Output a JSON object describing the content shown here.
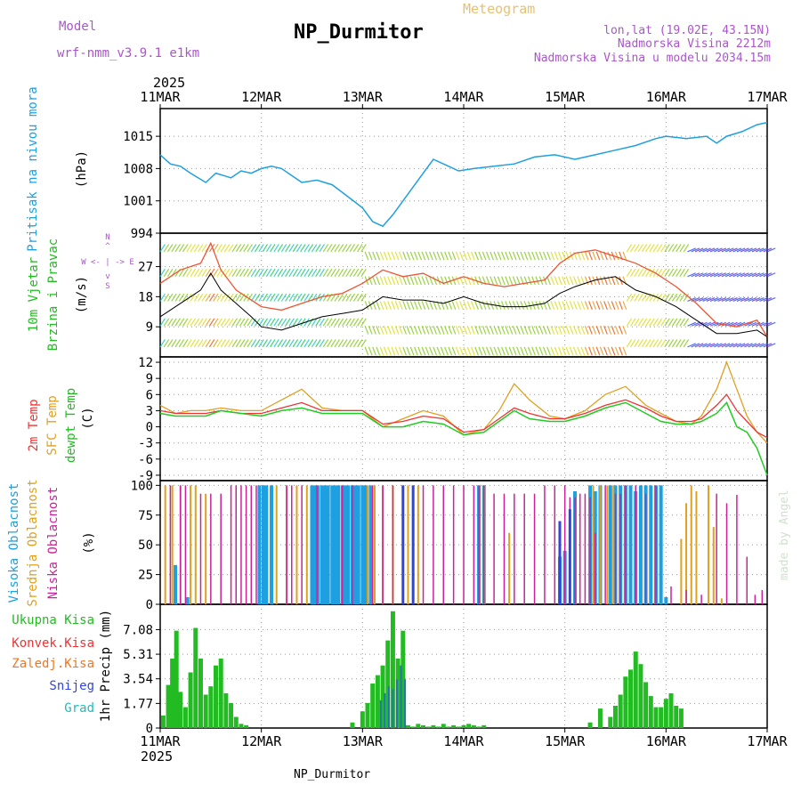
{
  "header": {
    "model_label": "Model",
    "model_name": "wrf-nmm_v3.9.1 e1km",
    "title": "NP_Durmitor",
    "product": "Meteogram",
    "coords": "lon,lat (19.02E, 43.15N)",
    "altitude": "Nadmorska Visina 2212m",
    "model_altitude": "Nadmorska Visina u modelu 2034.15m",
    "year_top": "2025",
    "year_bottom": "2025",
    "footer": "NP_Durmitor",
    "watermark": "made by Angel"
  },
  "colors": {
    "pressure": "#1ea0e0",
    "wind_label": "#22bb22",
    "temp_2m": "#ee3333",
    "temp_sfc": "#e0a020",
    "dewpoint": "#22cc22",
    "cloud_high": "#1ea0e0",
    "cloud_mid": "#e0a020",
    "cloud_low": "#cc2299",
    "precip_total": "#22bb22",
    "precip_conv": "#ee3333",
    "precip_frozen": "#ee7722",
    "snow": "#3344dd",
    "hail": "#22bbbb",
    "title_purple": "#aa55cc",
    "meteogram_label": "#e8c070"
  },
  "chart_data": [
    {
      "id": "pressure",
      "type": "line",
      "ylabel_lines": [
        "Pritisak na nivou mora",
        "(hPa)"
      ],
      "x_ticks": [
        "11MAR",
        "12MAR",
        "13MAR",
        "14MAR",
        "15MAR",
        "16MAR",
        "17MAR"
      ],
      "yticks": [
        "994",
        "1001",
        "1008",
        "1015"
      ],
      "ylim": [
        994,
        1021
      ],
      "grid": true,
      "series": [
        {
          "x": [
            0,
            0.1,
            0.2,
            0.3,
            0.45,
            0.55,
            0.7,
            0.8,
            0.9,
            1.0,
            1.1,
            1.2,
            1.3,
            1.4,
            1.55,
            1.7,
            1.85,
            2.0,
            2.1,
            2.2,
            2.3,
            2.4,
            2.5,
            2.6,
            2.7,
            2.8,
            2.95,
            3.1,
            3.3,
            3.5,
            3.7,
            3.9,
            4.1,
            4.3,
            4.5,
            4.7,
            4.9,
            5.0,
            5.2,
            5.4,
            5.5,
            5.6,
            5.75,
            5.9,
            6.0
          ],
          "y": [
            1011,
            1009,
            1008.5,
            1007,
            1005,
            1007,
            1006,
            1007.5,
            1007,
            1008,
            1008.5,
            1008,
            1006.5,
            1005,
            1005.5,
            1004.5,
            1002,
            999.5,
            996.5,
            995.5,
            998,
            1001,
            1004,
            1007,
            1010,
            1009,
            1007.5,
            1008,
            1008.5,
            1009,
            1010.5,
            1011,
            1010,
            1011,
            1012,
            1013,
            1014.5,
            1015,
            1014.5,
            1015,
            1013.5,
            1015,
            1016,
            1017.5,
            1018
          ]
        }
      ]
    },
    {
      "id": "wind",
      "type": "line",
      "ylabel_lines": [
        "10m Vjetar",
        "Brzina i Pravac",
        "(m/s)"
      ],
      "compass_lines": [
        "N",
        "^",
        "W <- | -> E",
        "v",
        "S"
      ],
      "yticks": [
        "9",
        "18",
        "27"
      ],
      "ylim": [
        0,
        37
      ],
      "grid": true,
      "series": [
        {
          "name": "speed",
          "x": [
            0,
            0.2,
            0.4,
            0.5,
            0.6,
            0.75,
            0.9,
            1.0,
            1.2,
            1.4,
            1.6,
            1.8,
            2.0,
            2.2,
            2.4,
            2.6,
            2.8,
            3.0,
            3.2,
            3.4,
            3.6,
            3.8,
            3.95,
            4.1,
            4.3,
            4.5,
            4.7,
            4.9,
            5.1,
            5.3,
            5.5,
            5.7,
            5.9,
            6.0
          ],
          "y": [
            12,
            16,
            20,
            25,
            20,
            16,
            12,
            9,
            8,
            10,
            12,
            13,
            14,
            18,
            17,
            17,
            16,
            18,
            16,
            15,
            15,
            16,
            19,
            21,
            23,
            24,
            20,
            18,
            15,
            11,
            7,
            7,
            8,
            6
          ]
        },
        {
          "name": "gust",
          "x": [
            0,
            0.2,
            0.4,
            0.5,
            0.6,
            0.75,
            0.9,
            1.0,
            1.2,
            1.4,
            1.6,
            1.8,
            2.0,
            2.2,
            2.4,
            2.6,
            2.8,
            3.0,
            3.2,
            3.4,
            3.6,
            3.8,
            3.95,
            4.1,
            4.3,
            4.5,
            4.7,
            4.9,
            5.1,
            5.3,
            5.5,
            5.7,
            5.9,
            6.0
          ],
          "y": [
            22,
            26,
            28,
            34,
            26,
            20,
            17,
            15,
            14,
            16,
            18,
            19,
            22,
            26,
            24,
            25,
            22,
            24,
            22,
            21,
            22,
            23,
            28,
            31,
            32,
            30,
            28,
            25,
            21,
            16,
            10,
            9,
            11,
            6
          ]
        }
      ]
    },
    {
      "id": "temperature",
      "type": "line",
      "ylabel_lines": [
        "2m Temp",
        "SFC Temp",
        "dewpt Temp",
        "(C)"
      ],
      "yticks": [
        "-9",
        "-6",
        "-3",
        "0",
        "3",
        "6",
        "9",
        "12"
      ],
      "ylim": [
        -10,
        13
      ],
      "grid": true,
      "series": [
        {
          "name": "2m Temp",
          "x": [
            0,
            0.15,
            0.3,
            0.45,
            0.6,
            0.8,
            1.0,
            1.2,
            1.4,
            1.6,
            1.8,
            2.0,
            2.2,
            2.4,
            2.6,
            2.8,
            3.0,
            3.2,
            3.35,
            3.5,
            3.65,
            3.85,
            4.0,
            4.2,
            4.4,
            4.6,
            4.8,
            4.95,
            5.1,
            5.25,
            5.35,
            5.5,
            5.6,
            5.7,
            5.8,
            5.9,
            6.0
          ],
          "y": [
            3,
            2.5,
            2.5,
            2.5,
            3,
            2.5,
            2.5,
            3.5,
            4.5,
            3,
            3,
            3,
            0.5,
            1,
            2,
            1.5,
            -1,
            -0.5,
            1.5,
            3.5,
            2.5,
            1.5,
            1.5,
            2.5,
            4,
            5,
            3.5,
            2,
            1,
            1,
            1.5,
            4,
            6,
            3,
            1,
            -1,
            -2
          ]
        },
        {
          "name": "SFC Temp",
          "x": [
            0,
            0.15,
            0.3,
            0.45,
            0.6,
            0.8,
            1.0,
            1.2,
            1.4,
            1.6,
            1.8,
            2.0,
            2.2,
            2.4,
            2.6,
            2.8,
            3.0,
            3.2,
            3.35,
            3.5,
            3.65,
            3.85,
            4.0,
            4.2,
            4.4,
            4.6,
            4.8,
            4.95,
            5.1,
            5.25,
            5.35,
            5.5,
            5.6,
            5.7,
            5.8,
            5.9,
            6.0
          ],
          "y": [
            4,
            2.5,
            3,
            3,
            3.5,
            3,
            3,
            5,
            7,
            3.5,
            3,
            3,
            0,
            1.5,
            3,
            2,
            -1.5,
            -0.5,
            3,
            8,
            5,
            2,
            1.5,
            3,
            6,
            7.5,
            4,
            2.5,
            1,
            0.5,
            2,
            7,
            12,
            7,
            2,
            -1,
            -3
          ]
        },
        {
          "name": "dewpt Temp",
          "x": [
            0,
            0.15,
            0.3,
            0.45,
            0.6,
            0.8,
            1.0,
            1.2,
            1.4,
            1.6,
            1.8,
            2.0,
            2.2,
            2.4,
            2.6,
            2.8,
            3.0,
            3.2,
            3.35,
            3.5,
            3.65,
            3.85,
            4.0,
            4.2,
            4.4,
            4.6,
            4.8,
            4.95,
            5.1,
            5.25,
            5.35,
            5.5,
            5.6,
            5.7,
            5.8,
            5.9,
            6.0
          ],
          "y": [
            2.5,
            2,
            2,
            2,
            3,
            2.5,
            2,
            3,
            3.5,
            2.5,
            2.5,
            2.5,
            0,
            0,
            1,
            0.5,
            -1.5,
            -1,
            1,
            3,
            1.5,
            1,
            1,
            2,
            3.5,
            4.5,
            2.5,
            1,
            0.5,
            0.5,
            1,
            2.5,
            4.5,
            0,
            -1,
            -4,
            -9
          ]
        }
      ]
    },
    {
      "id": "clouds",
      "type": "bar",
      "ylabel_lines": [
        "Visoka Oblacnost",
        "Srednja Oblacnost",
        "Niska Oblacnost",
        "(%)"
      ],
      "yticks": [
        "0",
        "25",
        "50",
        "75",
        "100"
      ],
      "ylim": [
        0,
        104
      ],
      "grid": true,
      "series": [
        {
          "name": "Visoka Oblacnost",
          "x": [
            0.15,
            0.27,
            0.98,
            1.02,
            1.05,
            1.1,
            1.5,
            1.53,
            1.56,
            1.6,
            1.63,
            1.66,
            1.7,
            1.73,
            1.76,
            1.8,
            1.83,
            1.86,
            1.9,
            1.93,
            1.96,
            2.0,
            2.03,
            2.08,
            3.15,
            3.2,
            3.95,
            4.0,
            4.1,
            4.25,
            4.3,
            4.35,
            4.45,
            4.5,
            4.55,
            4.6,
            4.65,
            4.7,
            4.75,
            4.8,
            4.85,
            4.9,
            4.95,
            5.0
          ],
          "y": [
            33,
            6,
            100,
            100,
            100,
            100,
            100,
            100,
            100,
            100,
            100,
            100,
            100,
            100,
            100,
            100,
            100,
            100,
            100,
            100,
            100,
            100,
            100,
            100,
            100,
            100,
            40,
            45,
            95,
            100,
            95,
            100,
            100,
            100,
            100,
            100,
            100,
            95,
            100,
            100,
            100,
            100,
            100,
            6
          ]
        },
        {
          "name": "Srednja Oblacnost",
          "x": [
            0.05,
            0.12,
            0.2,
            0.3,
            0.35,
            0.45,
            1.15,
            1.25,
            1.35,
            1.45,
            2.05,
            2.12,
            2.2,
            2.3,
            2.45,
            2.55,
            3.2,
            3.45,
            4.28,
            4.35,
            4.42,
            4.48,
            5.15,
            5.2,
            5.25,
            5.3,
            5.42,
            5.47,
            5.55
          ],
          "y": [
            100,
            100,
            100,
            100,
            100,
            93,
            100,
            100,
            100,
            100,
            100,
            100,
            100,
            100,
            100,
            100,
            100,
            60,
            100,
            100,
            100,
            100,
            55,
            85,
            100,
            95,
            100,
            65,
            5
          ]
        },
        {
          "name": "Niska Oblacnost",
          "x": [
            0.1,
            0.2,
            0.25,
            0.4,
            0.5,
            0.6,
            0.7,
            0.75,
            0.8,
            0.85,
            0.9,
            0.95,
            1.25,
            1.3,
            1.4,
            1.55,
            1.8,
            1.9,
            2.1,
            2.2,
            2.3,
            2.4,
            2.5,
            2.6,
            2.7,
            2.8,
            2.9,
            3.0,
            3.1,
            3.15,
            3.2,
            3.3,
            3.4,
            3.5,
            3.6,
            3.7,
            3.8,
            3.9,
            4.0,
            4.05,
            4.1,
            4.15,
            4.2,
            4.25,
            4.3,
            4.4,
            4.5,
            4.55,
            4.6,
            4.7,
            4.8,
            4.9,
            5.05,
            5.2,
            5.35,
            5.5,
            5.6,
            5.7,
            5.8,
            5.88,
            5.95
          ],
          "y": [
            100,
            100,
            100,
            93,
            93,
            93,
            100,
            100,
            100,
            100,
            100,
            100,
            100,
            100,
            100,
            100,
            100,
            100,
            100,
            100,
            100,
            100,
            100,
            100,
            100,
            100,
            100,
            100,
            100,
            100,
            100,
            93,
            93,
            93,
            93,
            93,
            100,
            100,
            100,
            90,
            90,
            93,
            93,
            90,
            60,
            100,
            93,
            93,
            100,
            100,
            93,
            100,
            15,
            12,
            8,
            93,
            85,
            92,
            40,
            8,
            12
          ]
        },
        {
          "name": "snow",
          "x": [
            2.4,
            2.5,
            3.95,
            4.05
          ],
          "y": [
            100,
            100,
            70,
            80
          ]
        }
      ]
    },
    {
      "id": "precip",
      "type": "bar",
      "ylabel_lines": [
        "1hr Precip (mm)"
      ],
      "legend": [
        {
          "key": "total",
          "label": "Ukupna Kisa"
        },
        {
          "key": "conv",
          "label": "Konvek.Kisa"
        },
        {
          "key": "frozen",
          "label": "Zaledj.Kisa"
        },
        {
          "key": "snow",
          "label": "Snijeg"
        },
        {
          "key": "hail",
          "label": "Grad"
        }
      ],
      "x_ticks": [
        "11MAR",
        "12MAR",
        "13MAR",
        "14MAR",
        "15MAR",
        "16MAR",
        "17MAR"
      ],
      "yticks": [
        "0",
        "1.77",
        "3.54",
        "5.31",
        "7.08"
      ],
      "ylim": [
        0,
        8.9
      ],
      "grid": true,
      "series": [
        {
          "name": "Ukupna Kisa",
          "x": [
            0.03,
            0.08,
            0.12,
            0.16,
            0.2,
            0.25,
            0.3,
            0.35,
            0.4,
            0.45,
            0.5,
            0.55,
            0.6,
            0.65,
            0.7,
            0.75,
            0.8,
            0.85,
            1.9,
            2.0,
            2.05,
            2.1,
            2.15,
            2.2,
            2.25,
            2.3,
            2.35,
            2.4,
            2.45,
            2.5,
            2.55,
            2.6,
            2.65,
            2.7,
            2.75,
            2.8,
            2.85,
            2.9,
            2.95,
            3.0,
            3.05,
            3.1,
            3.15,
            3.2,
            4.25,
            4.35,
            4.45,
            4.5,
            4.55,
            4.6,
            4.65,
            4.7,
            4.75,
            4.8,
            4.85,
            4.9,
            4.95,
            5.0,
            5.05,
            5.1,
            5.15
          ],
          "y": [
            0.9,
            3.1,
            5.0,
            7.0,
            2.6,
            1.5,
            4.0,
            7.2,
            5.0,
            2.4,
            3.0,
            4.5,
            5.0,
            2.5,
            1.8,
            0.8,
            0.3,
            0.2,
            0.4,
            1.2,
            1.8,
            3.2,
            3.8,
            4.5,
            6.3,
            8.4,
            5.0,
            7.0,
            0.2,
            0.1,
            0.3,
            0.2,
            0.1,
            0.2,
            0.1,
            0.3,
            0.1,
            0.2,
            0.1,
            0.2,
            0.3,
            0.2,
            0.1,
            0.2,
            0.4,
            1.4,
            0.8,
            1.6,
            2.4,
            3.7,
            4.2,
            5.5,
            4.6,
            3.3,
            2.3,
            1.5,
            1.5,
            2.1,
            2.5,
            1.6,
            1.4
          ]
        },
        {
          "name": "Snijeg",
          "x": [
            2.18,
            2.22,
            2.26,
            2.3,
            2.34,
            2.38,
            2.42
          ],
          "y": [
            2.0,
            2.5,
            3.0,
            2.8,
            3.5,
            4.5,
            3.5
          ]
        }
      ]
    }
  ]
}
